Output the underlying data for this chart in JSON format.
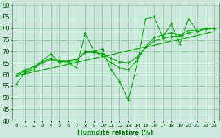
{
  "xlabel": "Humidité relative (%)",
  "xlim": [
    -0.5,
    23.5
  ],
  "ylim": [
    40,
    91
  ],
  "yticks": [
    40,
    45,
    50,
    55,
    60,
    65,
    70,
    75,
    80,
    85,
    90
  ],
  "xticks": [
    0,
    1,
    2,
    3,
    4,
    5,
    6,
    7,
    8,
    9,
    10,
    11,
    12,
    13,
    14,
    15,
    16,
    17,
    18,
    19,
    20,
    21,
    22,
    23
  ],
  "bg_color": "#cce8dc",
  "grid_color": "#99ccb3",
  "line_color": "#00aa00",
  "raw_data": [
    [
      0,
      56
    ],
    [
      1,
      61
    ],
    [
      2,
      62
    ],
    [
      3,
      66
    ],
    [
      4,
      69
    ],
    [
      5,
      65
    ],
    [
      6,
      65
    ],
    [
      7,
      63
    ],
    [
      8,
      78
    ],
    [
      9,
      70
    ],
    [
      10,
      71
    ],
    [
      11,
      62
    ],
    [
      12,
      57
    ],
    [
      13,
      49
    ],
    [
      14,
      64
    ],
    [
      15,
      84
    ],
    [
      16,
      85
    ],
    [
      17,
      76
    ],
    [
      18,
      82
    ],
    [
      19,
      73
    ],
    [
      20,
      84
    ],
    [
      21,
      79
    ],
    [
      22,
      80
    ],
    [
      23,
      80
    ]
  ],
  "smooth1": [
    [
      0,
      59.5
    ],
    [
      1,
      61.5
    ],
    [
      2,
      63
    ],
    [
      3,
      65
    ],
    [
      4,
      66.5
    ],
    [
      5,
      65.5
    ],
    [
      6,
      65.5
    ],
    [
      7,
      66
    ],
    [
      8,
      70
    ],
    [
      9,
      70
    ],
    [
      10,
      68
    ],
    [
      11,
      65
    ],
    [
      12,
      63
    ],
    [
      13,
      62
    ],
    [
      14,
      66
    ],
    [
      15,
      72
    ],
    [
      16,
      76
    ],
    [
      17,
      77
    ],
    [
      18,
      78
    ],
    [
      19,
      77
    ],
    [
      20,
      79
    ],
    [
      21,
      79
    ],
    [
      22,
      80
    ],
    [
      23,
      80
    ]
  ],
  "smooth2": [
    [
      0,
      60
    ],
    [
      1,
      62
    ],
    [
      2,
      63.5
    ],
    [
      3,
      65.5
    ],
    [
      4,
      67
    ],
    [
      5,
      66
    ],
    [
      6,
      66
    ],
    [
      7,
      66.5
    ],
    [
      8,
      69.5
    ],
    [
      9,
      69.5
    ],
    [
      10,
      69
    ],
    [
      11,
      67
    ],
    [
      12,
      65.5
    ],
    [
      13,
      65
    ],
    [
      14,
      67.5
    ],
    [
      15,
      71.5
    ],
    [
      16,
      74.5
    ],
    [
      17,
      75.5
    ],
    [
      18,
      76.5
    ],
    [
      19,
      76.5
    ],
    [
      20,
      78
    ],
    [
      21,
      78.5
    ],
    [
      22,
      79.5
    ],
    [
      23,
      80
    ]
  ],
  "regression_line": [
    [
      0,
      59.5
    ],
    [
      23,
      78.5
    ]
  ],
  "font_color": "#007700",
  "tick_color": "#005500"
}
